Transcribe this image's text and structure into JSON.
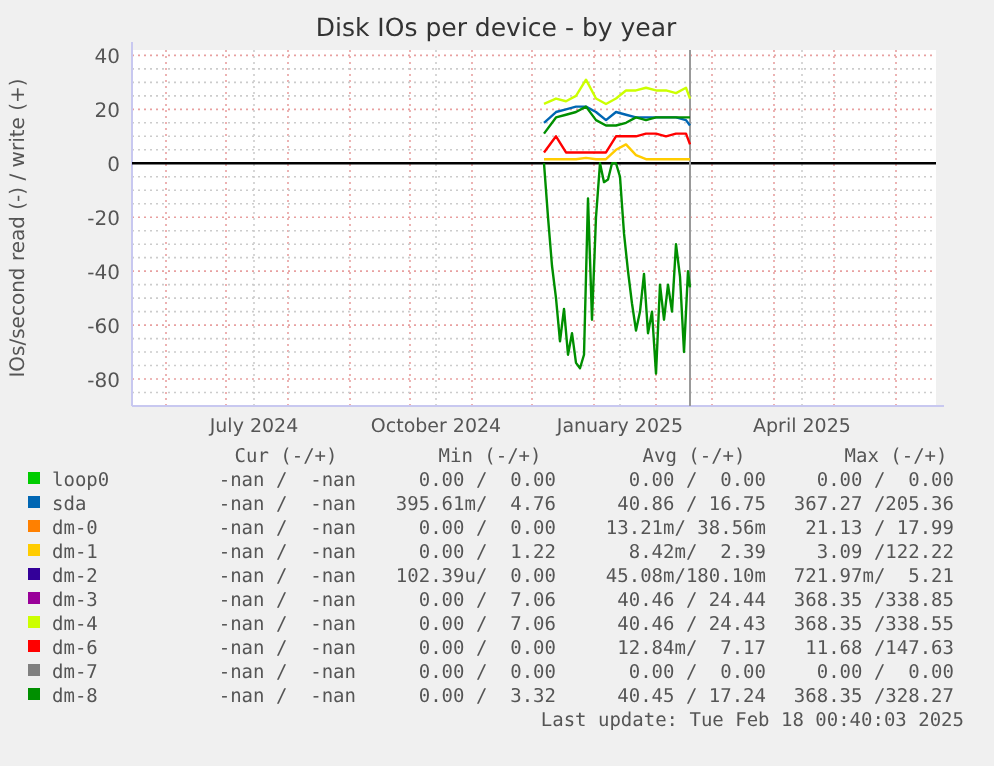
{
  "chart_data": {
    "type": "line",
    "title": "Disk IOs per device - by year",
    "ylabel": "IOs/second read (-) / write (+)",
    "xlim": [
      "2024-05-15",
      "2025-06-21"
    ],
    "xticks": [
      {
        "value": "2024-06-01",
        "label": null
      },
      {
        "value": "2024-07-01",
        "label": null
      },
      {
        "value": "2024-07-15",
        "label": "July 2024"
      },
      {
        "value": "2024-08-01",
        "label": null
      },
      {
        "value": "2024-09-01",
        "label": null
      },
      {
        "value": "2024-10-01",
        "label": null
      },
      {
        "value": "2024-10-14",
        "label": "October 2024"
      },
      {
        "value": "2024-11-01",
        "label": null
      },
      {
        "value": "2024-12-01",
        "label": null
      },
      {
        "value": "2025-01-01",
        "label": null
      },
      {
        "value": "2025-01-14",
        "label": "January 2025"
      },
      {
        "value": "2025-02-01",
        "label": null
      },
      {
        "value": "2025-03-01",
        "label": null
      },
      {
        "value": "2025-04-01",
        "label": null
      },
      {
        "value": "2025-04-15",
        "label": "April 2025"
      },
      {
        "value": "2025-05-01",
        "label": null
      },
      {
        "value": "2025-06-01",
        "label": null
      }
    ],
    "ylim": [
      -90,
      42
    ],
    "yticks": [
      {
        "value": -85,
        "label": null
      },
      -80,
      {
        "value": -75,
        "label": null
      },
      {
        "value": -70,
        "label": null
      },
      {
        "value": -65,
        "label": null
      },
      -60,
      {
        "value": -55,
        "label": null
      },
      {
        "value": -50,
        "label": null
      },
      {
        "value": -45,
        "label": null
      },
      -40,
      {
        "value": -35,
        "label": null
      },
      {
        "value": -30,
        "label": null
      },
      {
        "value": -25,
        "label": null
      },
      -20,
      {
        "value": -15,
        "label": null
      },
      {
        "value": -10,
        "label": null
      },
      {
        "value": -5,
        "label": null
      },
      0,
      {
        "value": 5,
        "label": null
      },
      {
        "value": 10,
        "label": null
      },
      {
        "value": 15,
        "label": null
      },
      20,
      {
        "value": 25,
        "label": null
      },
      {
        "value": 30,
        "label": null
      },
      {
        "value": 35,
        "label": null
      },
      40
    ],
    "grid": true,
    "legend": "bottom",
    "marker": "none",
    "line_style": "solid",
    "ref_lines": [
      {
        "axis": "y",
        "value": 0,
        "color": "#000000"
      },
      {
        "axis": "x",
        "value": "2025-02-18",
        "color": "#999999"
      }
    ],
    "x": [
      "2024-12-07",
      "2024-12-13",
      "2024-12-18",
      "2024-12-23",
      "2024-12-28",
      "2025-01-02",
      "2025-01-07",
      "2025-01-12",
      "2025-01-17",
      "2025-01-22",
      "2025-01-27",
      "2025-02-01",
      "2025-02-06",
      "2025-02-11",
      "2025-02-16",
      "2025-02-18"
    ],
    "series": [
      {
        "name": "loop0",
        "color": "#00cc00",
        "values": [
          null,
          null,
          null,
          null,
          null,
          null,
          null,
          null,
          null,
          null,
          null,
          null,
          null,
          null,
          null,
          null
        ]
      },
      {
        "name": "sda",
        "color": "#0066b3",
        "values": [
          15,
          19,
          20,
          21,
          21,
          19,
          16,
          19,
          18,
          17,
          17,
          17,
          17,
          17,
          16,
          14
        ]
      },
      {
        "name": "dm-0",
        "color": "#ff8000",
        "values": [
          null,
          null,
          null,
          null,
          null,
          null,
          null,
          null,
          null,
          null,
          null,
          null,
          null,
          null,
          null,
          null
        ]
      },
      {
        "name": "dm-1",
        "color": "#ffcc00",
        "values": [
          1.5,
          1.5,
          1.5,
          1.5,
          2,
          1.5,
          1.5,
          5,
          7,
          3,
          1.5,
          1.5,
          1.5,
          1.5,
          1.5,
          1.5
        ]
      },
      {
        "name": "dm-2",
        "color": "#330099",
        "values": [
          null,
          null,
          null,
          null,
          null,
          null,
          null,
          null,
          null,
          null,
          null,
          null,
          null,
          null,
          null,
          null
        ]
      },
      {
        "name": "dm-3",
        "color": "#990099",
        "values": [
          null,
          null,
          null,
          null,
          null,
          null,
          null,
          null,
          null,
          null,
          null,
          null,
          null,
          null,
          null,
          null
        ]
      },
      {
        "name": "dm-4",
        "color": "#ccff00",
        "values": [
          22,
          24,
          23,
          25,
          31,
          24,
          22,
          24,
          27,
          27,
          28,
          27,
          27,
          26,
          28,
          24
        ]
      },
      {
        "name": "dm-6",
        "color": "#ff0000",
        "values": [
          4,
          10,
          4,
          4,
          4,
          4,
          4,
          10,
          10,
          10,
          11,
          11,
          10,
          11,
          11,
          7
        ]
      },
      {
        "name": "dm-7",
        "color": "#808080",
        "values": [
          null,
          null,
          null,
          null,
          null,
          null,
          null,
          null,
          null,
          null,
          null,
          null,
          null,
          null,
          null,
          null
        ]
      },
      {
        "name": "dm-8",
        "color": "#008f00",
        "values": [
          11,
          17,
          18,
          19,
          21,
          16,
          14,
          14,
          15,
          17,
          16,
          17,
          17,
          17,
          17,
          17
        ]
      },
      {
        "color": "#008f00",
        "x": [
          "2024-12-07",
          "2024-12-09",
          "2024-12-11",
          "2024-12-13",
          "2024-12-15",
          "2024-12-17",
          "2024-12-19",
          "2024-12-21",
          "2024-12-23",
          "2024-12-25",
          "2024-12-27",
          "2024-12-29",
          "2024-12-31",
          "2025-01-02",
          "2025-01-04",
          "2025-01-06",
          "2025-01-08",
          "2025-01-10",
          "2025-01-12",
          "2025-01-14",
          "2025-01-16",
          "2025-01-18",
          "2025-01-20",
          "2025-01-22",
          "2025-01-24",
          "2025-01-26",
          "2025-01-28",
          "2025-01-30",
          "2025-02-01",
          "2025-02-03",
          "2025-02-05",
          "2025-02-07",
          "2025-02-09",
          "2025-02-11",
          "2025-02-13",
          "2025-02-15",
          "2025-02-17",
          "2025-02-18"
        ],
        "values": [
          0,
          -20,
          -38,
          -50,
          -66,
          -54,
          -71,
          -63,
          -74,
          -76,
          -71,
          -13,
          -58,
          -20,
          0,
          -7,
          -6,
          0,
          0,
          -5,
          -26,
          -40,
          -52,
          -62,
          -55,
          -41,
          -63,
          -55,
          -78,
          -45,
          -58,
          -45,
          -55,
          -30,
          -42,
          -70,
          -40,
          -46
        ]
      }
    ],
    "annotations": [
      "Cur (-/+)",
      "Min (-/+)",
      "Avg (-/+)",
      "Max (-/+)",
      "-nan /  -nan",
      "0.00 /  0.00",
      "0.00 /  0.00",
      "0.00 /  0.00",
      "-nan /  -nan",
      "395.61m/  4.76",
      "40.86 / 16.75",
      "367.27 /205.36",
      "-nan /  -nan",
      "0.00 /  0.00",
      "13.21m/ 38.56m",
      "21.13 / 17.99",
      "-nan /  -nan",
      "0.00 /  1.22",
      "8.42m/  2.39",
      "3.09 /122.22",
      "-nan /  -nan",
      "102.39u/  0.00",
      "45.08m/180.10m",
      "721.97m/  5.21",
      "-nan /  -nan",
      "0.00 /  7.06",
      "40.46 / 24.44",
      "368.35 /338.85",
      "-nan /  -nan",
      "0.00 /  7.06",
      "40.46 / 24.43",
      "368.35 /338.55",
      "-nan /  -nan",
      "0.00 /  0.00",
      "12.84m/  7.17",
      "11.68 /147.63",
      "-nan /  -nan",
      "0.00 /  0.00",
      "0.00 /  0.00",
      "0.00 /  0.00",
      "-nan /  -nan",
      "0.00 /  3.32",
      "40.45 / 17.24",
      "368.35 /328.27",
      "Last update: Tue Feb 18 00:40:03 2025"
    ]
  }
}
